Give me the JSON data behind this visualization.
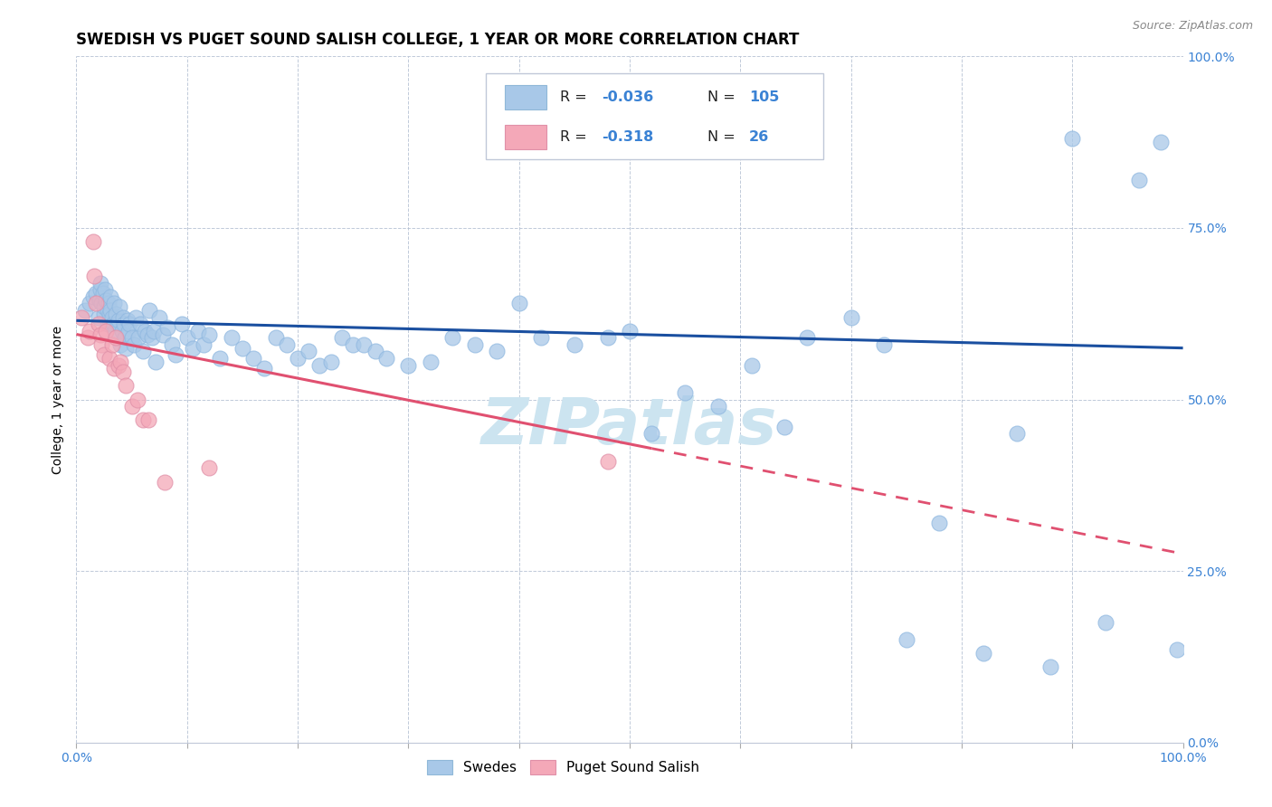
{
  "title": "SWEDISH VS PUGET SOUND SALISH COLLEGE, 1 YEAR OR MORE CORRELATION CHART",
  "source_text": "Source: ZipAtlas.com",
  "ylabel": "College, 1 year or more",
  "xlim": [
    0.0,
    1.0
  ],
  "ylim": [
    0.0,
    1.0
  ],
  "watermark": "ZIPatlas",
  "legend_R1": "-0.036",
  "legend_N1": "105",
  "legend_R2": "-0.318",
  "legend_N2": "26",
  "swedes_color": "#a8c8e8",
  "salish_color": "#f4a8b8",
  "trend_blue": "#1a4fa0",
  "trend_pink": "#e05070",
  "trend_blue_intercept": 0.615,
  "trend_blue_slope": -0.04,
  "trend_pink_intercept": 0.595,
  "trend_pink_slope": -0.32,
  "title_fontsize": 12,
  "axis_label_fontsize": 10,
  "tick_fontsize": 10,
  "source_fontsize": 9,
  "watermark_fontsize": 52,
  "watermark_color": "#cce4f0",
  "background_color": "#ffffff",
  "grid_color": "#b0bcd0",
  "right_axis_tick_color": "#3a82d4",
  "swedes_x": [
    0.008,
    0.012,
    0.015,
    0.018,
    0.02,
    0.021,
    0.022,
    0.022,
    0.023,
    0.024,
    0.025,
    0.025,
    0.026,
    0.027,
    0.028,
    0.028,
    0.029,
    0.03,
    0.03,
    0.031,
    0.031,
    0.032,
    0.033,
    0.034,
    0.035,
    0.036,
    0.037,
    0.038,
    0.039,
    0.04,
    0.041,
    0.042,
    0.043,
    0.044,
    0.045,
    0.046,
    0.047,
    0.048,
    0.05,
    0.052,
    0.054,
    0.056,
    0.058,
    0.06,
    0.062,
    0.064,
    0.066,
    0.068,
    0.07,
    0.072,
    0.075,
    0.078,
    0.082,
    0.086,
    0.09,
    0.095,
    0.1,
    0.105,
    0.11,
    0.115,
    0.12,
    0.13,
    0.14,
    0.15,
    0.16,
    0.17,
    0.18,
    0.19,
    0.2,
    0.21,
    0.22,
    0.23,
    0.24,
    0.25,
    0.26,
    0.27,
    0.28,
    0.3,
    0.32,
    0.34,
    0.36,
    0.38,
    0.4,
    0.42,
    0.45,
    0.48,
    0.5,
    0.52,
    0.55,
    0.58,
    0.61,
    0.64,
    0.66,
    0.7,
    0.73,
    0.75,
    0.78,
    0.82,
    0.85,
    0.88,
    0.9,
    0.93,
    0.96,
    0.98,
    0.995
  ],
  "swedes_y": [
    0.63,
    0.64,
    0.65,
    0.655,
    0.62,
    0.645,
    0.66,
    0.67,
    0.64,
    0.655,
    0.625,
    0.635,
    0.66,
    0.645,
    0.63,
    0.61,
    0.64,
    0.615,
    0.625,
    0.65,
    0.63,
    0.62,
    0.61,
    0.64,
    0.6,
    0.625,
    0.61,
    0.615,
    0.635,
    0.58,
    0.6,
    0.62,
    0.61,
    0.59,
    0.575,
    0.615,
    0.6,
    0.61,
    0.59,
    0.58,
    0.62,
    0.59,
    0.61,
    0.57,
    0.6,
    0.595,
    0.63,
    0.59,
    0.6,
    0.555,
    0.62,
    0.595,
    0.605,
    0.58,
    0.565,
    0.61,
    0.59,
    0.575,
    0.6,
    0.58,
    0.595,
    0.56,
    0.59,
    0.575,
    0.56,
    0.545,
    0.59,
    0.58,
    0.56,
    0.57,
    0.55,
    0.555,
    0.59,
    0.58,
    0.58,
    0.57,
    0.56,
    0.55,
    0.555,
    0.59,
    0.58,
    0.57,
    0.64,
    0.59,
    0.58,
    0.59,
    0.6,
    0.45,
    0.51,
    0.49,
    0.55,
    0.46,
    0.59,
    0.62,
    0.58,
    0.15,
    0.32,
    0.13,
    0.45,
    0.11,
    0.88,
    0.175,
    0.82,
    0.875,
    0.135
  ],
  "salish_x": [
    0.005,
    0.01,
    0.012,
    0.015,
    0.016,
    0.018,
    0.02,
    0.022,
    0.023,
    0.025,
    0.027,
    0.03,
    0.032,
    0.034,
    0.036,
    0.038,
    0.04,
    0.042,
    0.045,
    0.05,
    0.055,
    0.06,
    0.065,
    0.08,
    0.12,
    0.48
  ],
  "salish_y": [
    0.62,
    0.59,
    0.6,
    0.73,
    0.68,
    0.64,
    0.61,
    0.595,
    0.58,
    0.565,
    0.6,
    0.56,
    0.58,
    0.545,
    0.59,
    0.55,
    0.555,
    0.54,
    0.52,
    0.49,
    0.5,
    0.47,
    0.47,
    0.38,
    0.4,
    0.41
  ]
}
